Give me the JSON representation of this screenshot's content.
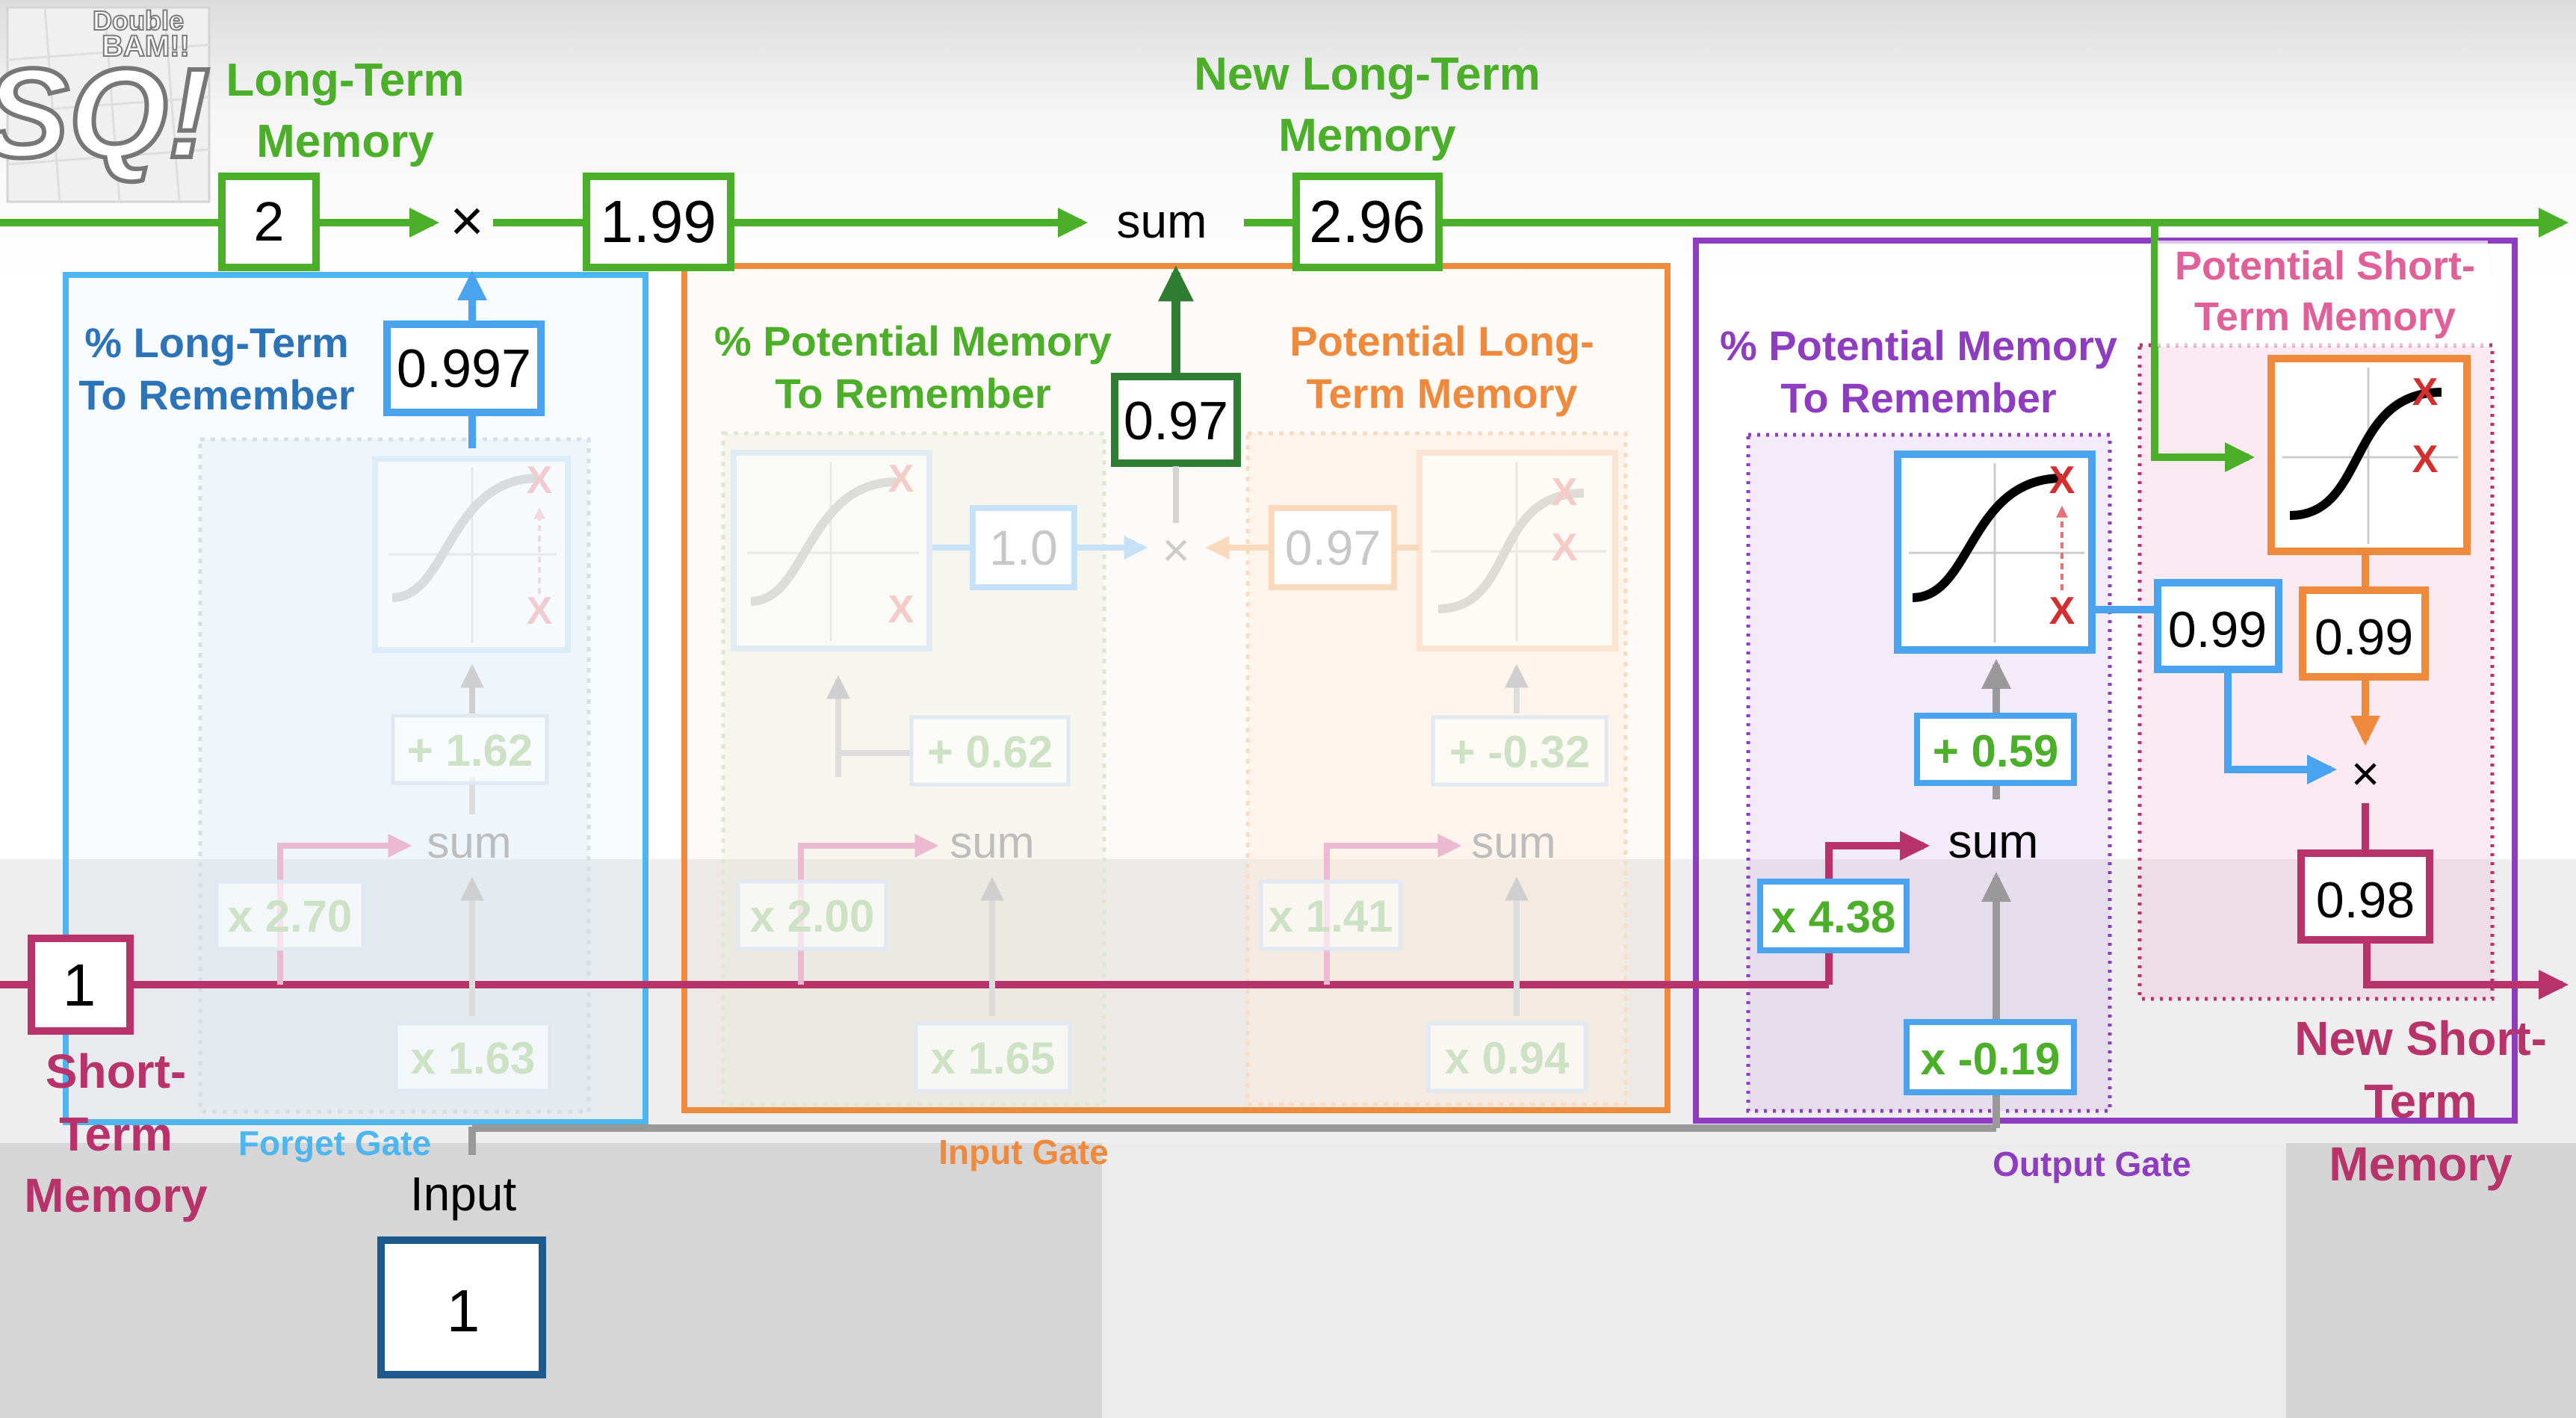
{
  "logo": {
    "line1": "Double",
    "line2": "BAM!!",
    "big": "SQ!"
  },
  "colors": {
    "ltm": "#4caf2a",
    "stm": "#b8336a",
    "forget": "#4db6f0",
    "input": "#ef8a3c",
    "output": "#8e3cc0",
    "input_box": "#1f5a8c",
    "dark_green": "#2e7d32",
    "gray": "#999999"
  },
  "long_term": {
    "title_1": "Long-Term",
    "title_2": "Memory",
    "value": "2",
    "times": "×",
    "result": "1.99",
    "sum_label": "sum",
    "new_title_1": "New Long-Term",
    "new_title_2": "Memory",
    "new_value": "2.96"
  },
  "forget_gate": {
    "label": "Forget Gate",
    "pct_title_1": "% Long-Term",
    "pct_title_2": "To Remember",
    "pct_value": "0.997",
    "bias": "+ 1.62",
    "sum": "sum",
    "stm_weight": "x 2.70",
    "input_weight": "x 1.63"
  },
  "input_gate": {
    "label": "Input Gate",
    "pct_title_1": "% Potential Memory",
    "pct_title_2": "To Remember",
    "pot_title_1": "Potential Long-",
    "pot_title_2": "Term Memory",
    "contribution": "0.97",
    "sigmoid_out": "1.0",
    "tanh_out": "0.97",
    "times": "×",
    "bias_1": "+ 0.62",
    "bias_2": "+ -0.32",
    "sum_1": "sum",
    "sum_2": "sum",
    "stm_weight_1": "x 2.00",
    "stm_weight_2": "x 1.41",
    "input_weight_1": "x 1.65",
    "input_weight_2": "x 0.94"
  },
  "output_gate": {
    "label": "Output Gate",
    "pct_title_1": "% Potential Memory",
    "pct_title_2": "To Remember",
    "pot_title_1": "Potential Short-",
    "pot_title_2": "Term Memory",
    "sigmoid_out": "0.99",
    "tanh_out": "0.99",
    "times": "×",
    "result": "0.98",
    "bias": "+ 0.59",
    "sum": "sum",
    "stm_weight": "x 4.38",
    "input_weight": "x -0.19"
  },
  "short_term": {
    "value": "1",
    "title_1": "Short-",
    "title_2": "Term",
    "title_3": "Memory",
    "new_title_1": "New Short-",
    "new_title_2": "Term",
    "new_title_3": "Memory"
  },
  "input": {
    "label": "Input",
    "value": "1"
  },
  "icons": {
    "x_mark": "X"
  }
}
